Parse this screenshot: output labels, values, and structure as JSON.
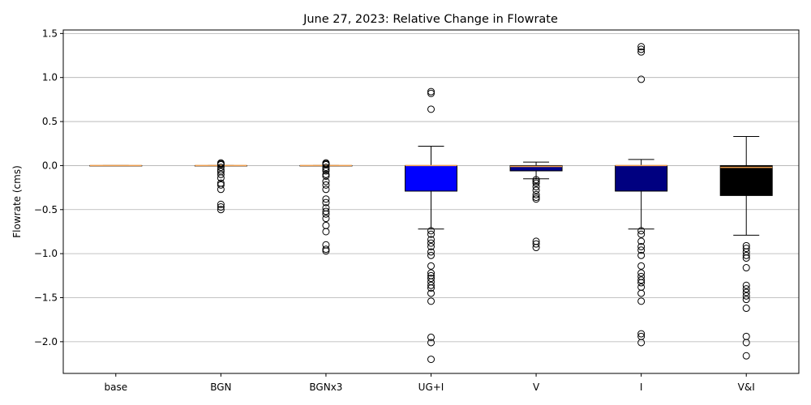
{
  "chart_data": {
    "type": "box",
    "title": "June 27, 2023: Relative Change in Flowrate",
    "xlabel": "",
    "ylabel": "Flowrate (cms)",
    "ylim": [
      -2.36,
      1.54
    ],
    "yticks": [
      1.5,
      1.0,
      0.5,
      0.0,
      -0.5,
      -1.0,
      -1.5,
      -2.0
    ],
    "ytick_labels": [
      "1.5",
      "1.0",
      "0.5",
      "0.0",
      "−0.5",
      "−1.0",
      "−1.5",
      "−2.0"
    ],
    "grid": "horizontal",
    "median_color": "#f0a050",
    "categories": [
      "base",
      "BGN",
      "BGNx3",
      "UG+I",
      "V",
      "I",
      "V&I"
    ],
    "boxes": [
      {
        "name": "base",
        "color": "#ffffff",
        "q1": 0.0,
        "median": 0.0,
        "q3": 0.0,
        "whisker_low": 0.0,
        "whisker_high": 0.0,
        "outliers": []
      },
      {
        "name": "BGN",
        "color": "#ffffff",
        "q1": 0.0,
        "median": 0.0,
        "q3": 0.0,
        "whisker_low": 0.0,
        "whisker_high": 0.0,
        "outliers": [
          0.03,
          0.02,
          0.01,
          -0.02,
          -0.05,
          -0.07,
          -0.1,
          -0.14,
          -0.2,
          -0.22,
          -0.27,
          -0.44,
          -0.47,
          -0.5
        ]
      },
      {
        "name": "BGNx3",
        "color": "#ffffff",
        "q1": 0.0,
        "median": 0.0,
        "q3": 0.0,
        "whisker_low": 0.0,
        "whisker_high": 0.0,
        "outliers": [
          0.03,
          0.02,
          0.01,
          -0.02,
          -0.04,
          -0.06,
          -0.1,
          -0.12,
          -0.18,
          -0.22,
          -0.27,
          -0.38,
          -0.42,
          -0.48,
          -0.52,
          -0.55,
          -0.6,
          -0.68,
          -0.75,
          -0.9,
          -0.95,
          -0.97
        ]
      },
      {
        "name": "UG+I",
        "color": "#0000ff",
        "q1": -0.29,
        "median": 0.0,
        "q3": 0.0,
        "whisker_low": -0.72,
        "whisker_high": 0.22,
        "outliers": [
          0.84,
          0.82,
          0.64,
          -0.74,
          -0.78,
          -0.84,
          -0.88,
          -0.92,
          -0.98,
          -1.02,
          -1.14,
          -1.22,
          -1.25,
          -1.28,
          -1.32,
          -1.36,
          -1.39,
          -1.45,
          -1.54,
          -1.95,
          -2.01,
          -2.2
        ]
      },
      {
        "name": "V",
        "color": "#00008b",
        "q1": -0.06,
        "median": -0.01,
        "q3": 0.0,
        "whisker_low": -0.15,
        "whisker_high": 0.04,
        "outliers": [
          -0.16,
          -0.18,
          -0.2,
          -0.24,
          -0.28,
          -0.33,
          -0.36,
          -0.38,
          -0.86,
          -0.89,
          -0.93
        ]
      },
      {
        "name": "I",
        "color": "#000080",
        "q1": -0.29,
        "median": 0.0,
        "q3": 0.0,
        "whisker_low": -0.72,
        "whisker_high": 0.07,
        "outliers": [
          1.35,
          1.32,
          1.29,
          0.98,
          -0.74,
          -0.78,
          -0.86,
          -0.92,
          -0.96,
          -1.02,
          -1.14,
          -1.22,
          -1.26,
          -1.3,
          -1.33,
          -1.38,
          -1.45,
          -1.54,
          -1.91,
          -1.94,
          -2.01
        ]
      },
      {
        "name": "V&I",
        "color": "#000000",
        "q1": -0.34,
        "median": -0.02,
        "q3": 0.0,
        "whisker_low": -0.79,
        "whisker_high": 0.33,
        "outliers": [
          -0.91,
          -0.94,
          -0.98,
          -1.02,
          -1.05,
          -1.16,
          -1.36,
          -1.4,
          -1.44,
          -1.48,
          -1.52,
          -1.62,
          -1.94,
          -2.01,
          -2.16
        ]
      }
    ]
  }
}
